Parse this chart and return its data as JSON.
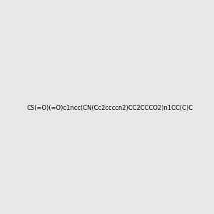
{
  "smiles": "CS(=O)(=O)c1ncc(CN(Cc2ccccn2)CC2CCCO2)n1CC(C)C",
  "title": "",
  "bg_color": "#e8e8e8",
  "fig_width": 3.0,
  "fig_height": 3.0,
  "dpi": 100,
  "atom_colors": {
    "N": [
      0,
      0,
      1
    ],
    "O": [
      1,
      0,
      0
    ],
    "S": [
      0.8,
      0.8,
      0
    ],
    "C": [
      0,
      0,
      0
    ]
  }
}
